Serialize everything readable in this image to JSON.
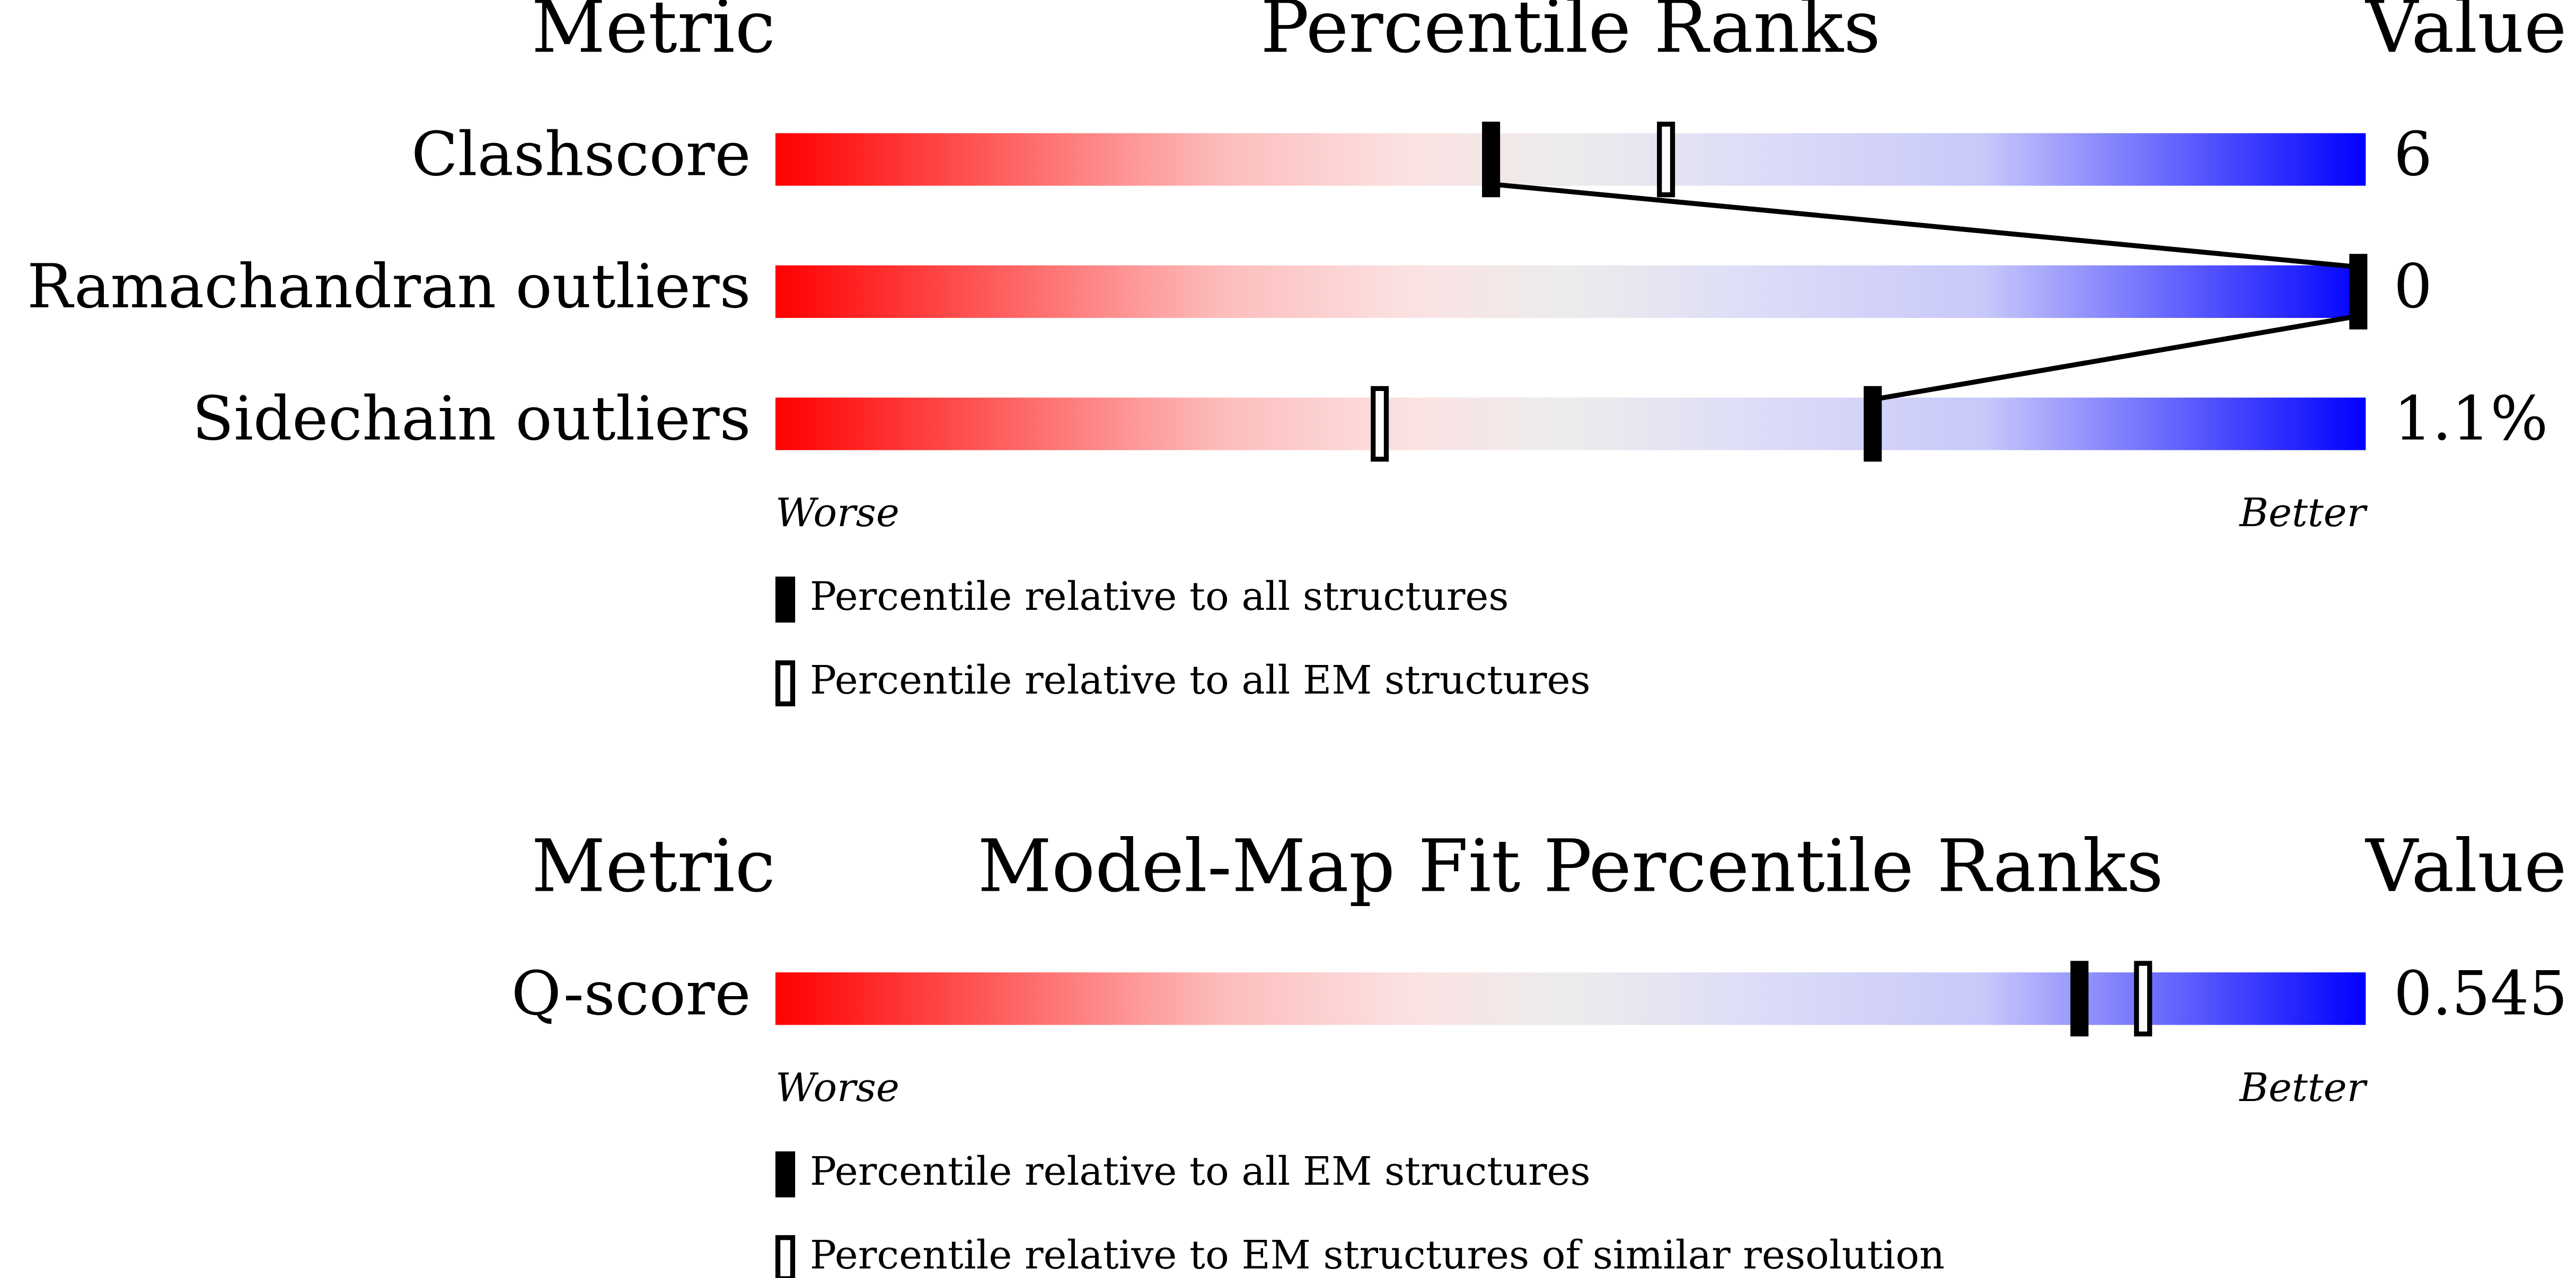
{
  "chart_data": [
    {
      "type": "percentile_slider",
      "metric_header": "Metric",
      "title": "Percentile Ranks",
      "value_header": "Value",
      "categories": [
        "Clashscore",
        "Ramachandran outliers",
        "Sidechain outliers"
      ],
      "metric_values": [
        "6",
        "0",
        "1.1%"
      ],
      "xlim": [
        0,
        100
      ],
      "worse_label": "Worse",
      "better_label": "Better",
      "series": [
        {
          "name": "Percentile relative to all structures",
          "color": "#000000",
          "fill": "filled",
          "values": [
            45,
            100,
            69
          ]
        },
        {
          "name": "Percentile relative to all EM structures",
          "color": "#000000",
          "fill": "open",
          "values": [
            56,
            null,
            38
          ]
        }
      ]
    },
    {
      "type": "percentile_slider",
      "metric_header": "Metric",
      "title": "Model-Map Fit Percentile Ranks",
      "value_header": "Value",
      "categories": [
        "Q-score"
      ],
      "metric_values": [
        "0.545"
      ],
      "xlim": [
        0,
        100
      ],
      "worse_label": "Worse",
      "better_label": "Better",
      "series": [
        {
          "name": "Percentile relative to all EM structures",
          "color": "#000000",
          "fill": "filled",
          "values": [
            82
          ]
        },
        {
          "name": "Percentile relative to EM structures of similar resolution",
          "color": "#000000",
          "fill": "open",
          "values": [
            86
          ]
        }
      ]
    }
  ]
}
